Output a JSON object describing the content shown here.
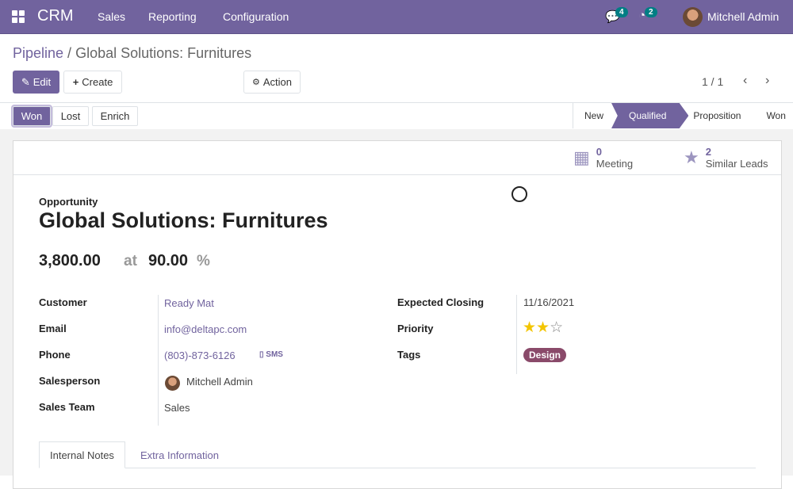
{
  "navbar": {
    "app": "CRM",
    "menu": [
      "Sales",
      "Reporting",
      "Configuration"
    ],
    "messages_count": "4",
    "activities_count": "2",
    "user": "Mitchell Admin",
    "color": "#71639e"
  },
  "breadcrumb": {
    "parent": "Pipeline",
    "separator": " / ",
    "current": "Global Solutions: Furnitures"
  },
  "toolbar": {
    "edit": "Edit",
    "create": "Create",
    "action": "Action",
    "pager": "1 / 1"
  },
  "statusbar": {
    "buttons": [
      "Won",
      "Lost",
      "Enrich"
    ],
    "stages": [
      "New",
      "Qualified",
      "Proposition",
      "Won"
    ],
    "current_stage": "Qualified"
  },
  "smart_buttons": {
    "meeting_count": "0",
    "meeting_label": "Meeting",
    "similar_count": "2",
    "similar_label": "Similar Leads"
  },
  "form": {
    "type": "Opportunity",
    "title": "Global Solutions: Furnitures",
    "revenue": "3,800.00",
    "at": "at",
    "probability": "90.00",
    "percent": "%",
    "left": [
      {
        "label": "Customer",
        "value": "Ready Mat"
      },
      {
        "label": "Email",
        "value": "info@deltapc.com"
      },
      {
        "label": "Phone",
        "value": "(803)-873-6126"
      },
      {
        "label": "Salesperson",
        "value": "Mitchell Admin"
      },
      {
        "label": "Sales Team",
        "value": "Sales"
      }
    ],
    "sms": "SMS",
    "right": [
      {
        "label": "Expected Closing",
        "value": "11/16/2021"
      },
      {
        "label": "Priority",
        "stars": 2,
        "max": 3
      },
      {
        "label": "Tags",
        "value": "Design"
      }
    ]
  },
  "tabs": [
    "Internal Notes",
    "Extra Information"
  ]
}
